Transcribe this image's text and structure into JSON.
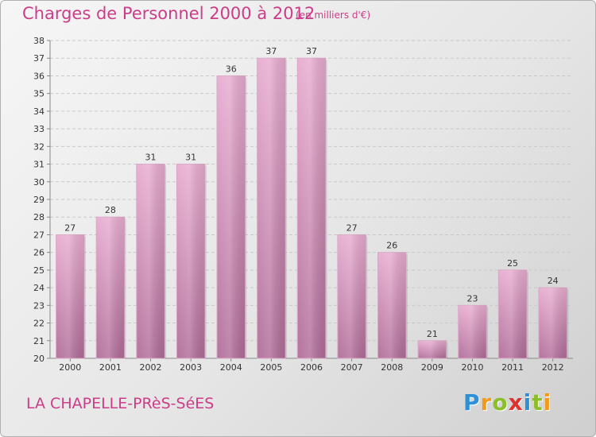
{
  "title": "Charges de Personnel 2000 à 2012",
  "unit": "(en milliers d'€)",
  "place": "LA CHAPELLE-PRèS-SéES",
  "logo": {
    "letters": [
      "P",
      "r",
      "o",
      "x",
      "i",
      "t",
      "i"
    ],
    "colors": [
      "#2f8fd8",
      "#f29a1c",
      "#8bbf2a",
      "#e0312c",
      "#2f8fd8",
      "#8bbf2a",
      "#f29a1c"
    ]
  },
  "colors": {
    "accent": "#cc3c88",
    "bar_top": "#e8acd0",
    "bar_bottom": "#b06c98"
  },
  "chart_data": {
    "type": "bar",
    "categories": [
      "2000",
      "2001",
      "2002",
      "2003",
      "2004",
      "2005",
      "2006",
      "2007",
      "2008",
      "2009",
      "2010",
      "2011",
      "2012"
    ],
    "values": [
      27,
      28,
      31,
      31,
      36,
      37,
      37,
      27,
      26,
      21,
      23,
      25,
      24
    ],
    "title": "Charges de Personnel 2000 à 2012",
    "xlabel": "",
    "ylabel": "",
    "ylim": [
      20,
      38
    ],
    "yticks": [
      20,
      21,
      22,
      23,
      24,
      25,
      26,
      27,
      28,
      29,
      30,
      31,
      32,
      33,
      34,
      35,
      36,
      37,
      38
    ],
    "grid": true,
    "data_labels": true
  }
}
